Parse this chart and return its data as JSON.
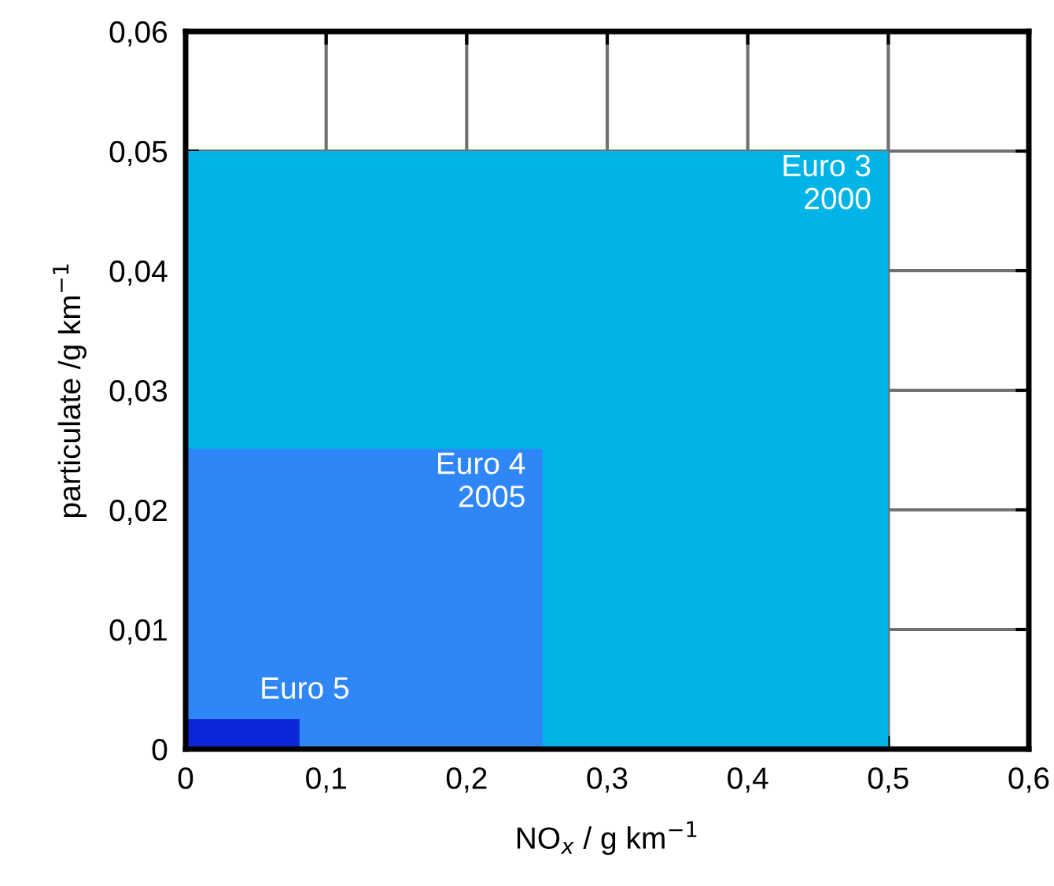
{
  "chart_data": {
    "type": "area",
    "xlabel": "NO$_{x}$ / g km$^{−1}$",
    "ylabel": "particulate /g km$^{−1}$",
    "series": [
      {
        "color": "#00b4e8",
        "x": [
          0,
          0.5
        ],
        "values": [
          0.05,
          0.05
        ]
      },
      {
        "color": "#2f86f6",
        "x": [
          0,
          0.254
        ],
        "values": [
          0.0251,
          0.0251
        ]
      },
      {
        "color": "#0c26d8",
        "x": [
          0,
          0.081
        ],
        "values": [
          0.0025,
          0.0025
        ]
      }
    ],
    "annotations": [
      "Euro 3\n2000",
      "Euro 4\n2005",
      "Euro 5"
    ],
    "xlim": [
      0,
      0.6
    ],
    "ylim": [
      0,
      0.06
    ],
    "xticks": [
      0,
      {
        "value": 0.1,
        "label": "0,1"
      },
      {
        "value": 0.2,
        "label": "0,2"
      },
      {
        "value": 0.3,
        "label": "0,3"
      },
      {
        "value": 0.4,
        "label": "0,4"
      },
      {
        "value": 0.5,
        "label": "0,5"
      },
      {
        "value": 0.6,
        "label": "0,6"
      }
    ],
    "yticks": [
      0,
      {
        "value": 0.01,
        "label": "0,01"
      },
      {
        "value": 0.02,
        "label": "0,02"
      },
      {
        "value": 0.03,
        "label": "0,03"
      },
      {
        "value": 0.04,
        "label": "0,04"
      },
      {
        "value": 0.05,
        "label": "0,05"
      },
      {
        "value": 0.06,
        "label": "0,06"
      }
    ],
    "grid": true
  }
}
